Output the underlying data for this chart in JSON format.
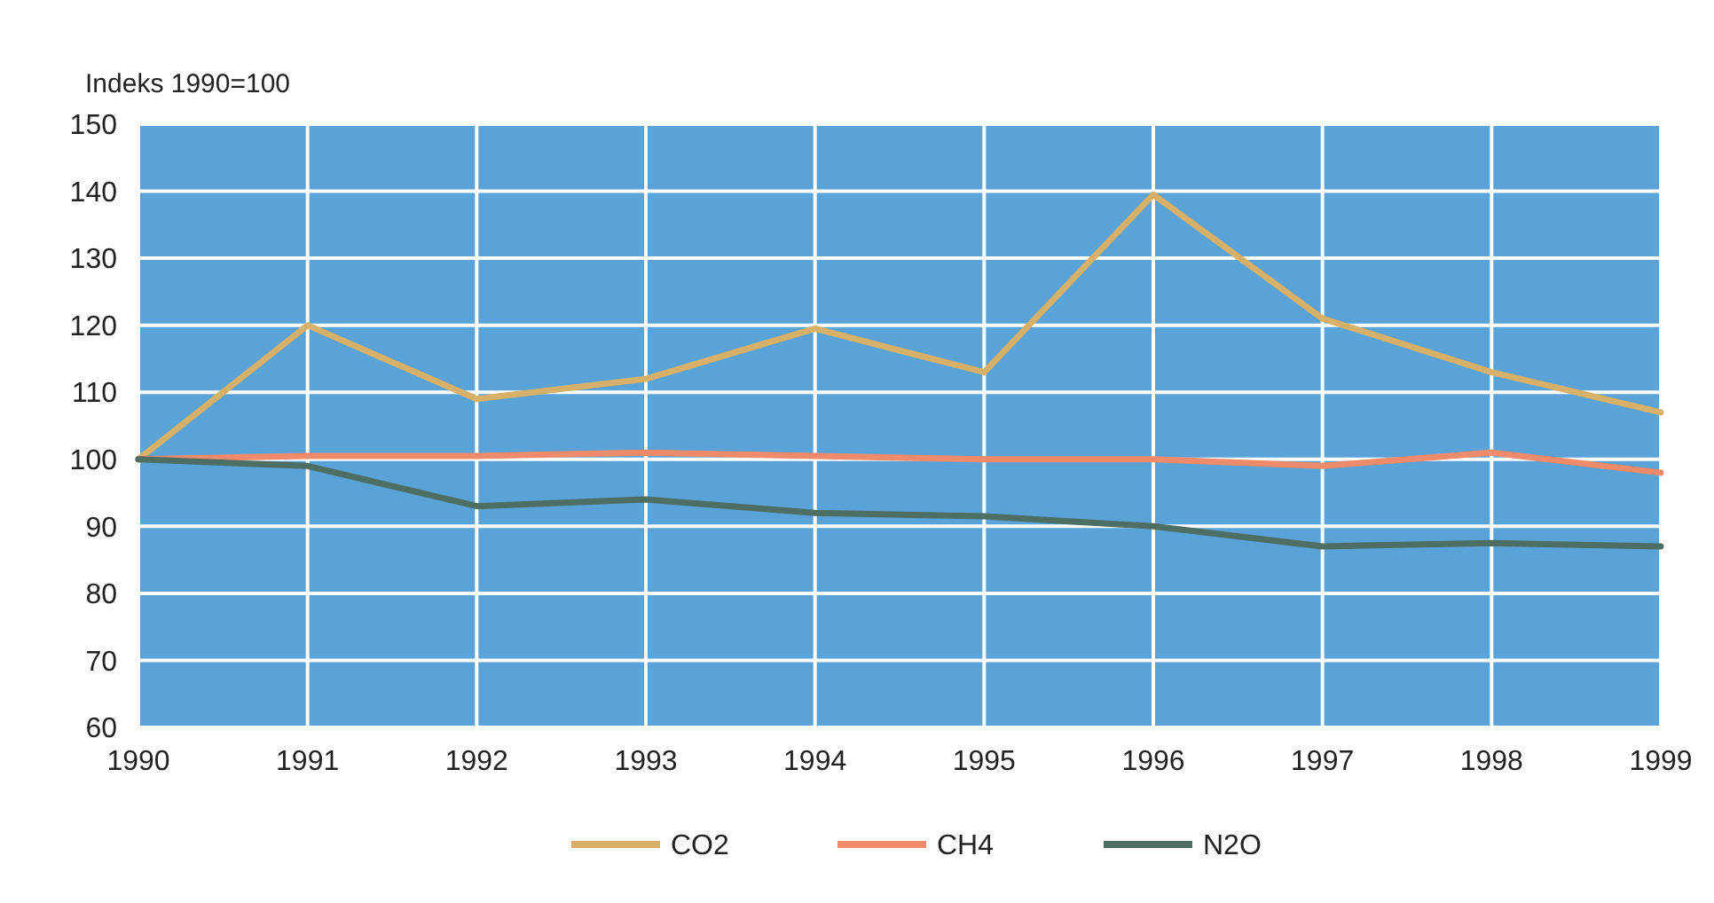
{
  "chart_data": {
    "type": "line",
    "ylabel": "Indeks 1990=100",
    "x": [
      1990,
      1991,
      1992,
      1993,
      1994,
      1995,
      1996,
      1997,
      1998,
      1999
    ],
    "xlim": [
      1990,
      1999
    ],
    "xticks": [
      1990,
      1991,
      1992,
      1993,
      1994,
      1995,
      1996,
      1997,
      1998,
      1999
    ],
    "ylim": [
      60,
      150
    ],
    "yticks": [
      60,
      70,
      80,
      90,
      100,
      110,
      120,
      130,
      140,
      150
    ],
    "grid": true,
    "legend": "bottom",
    "line_style": "solid",
    "series": [
      {
        "name": "CO2",
        "color": "#d9b068",
        "values": [
          100,
          120,
          109,
          112,
          119.5,
          113,
          139.5,
          121,
          113,
          107
        ]
      },
      {
        "name": "CH4",
        "color": "#ef8a6a",
        "values": [
          100,
          100.5,
          100.5,
          101,
          100.5,
          100,
          100,
          99,
          101,
          98
        ]
      },
      {
        "name": "N2O",
        "color": "#4d6e62",
        "values": [
          100,
          99,
          93,
          94,
          92,
          91.5,
          90,
          87,
          87.5,
          87
        ]
      }
    ]
  }
}
